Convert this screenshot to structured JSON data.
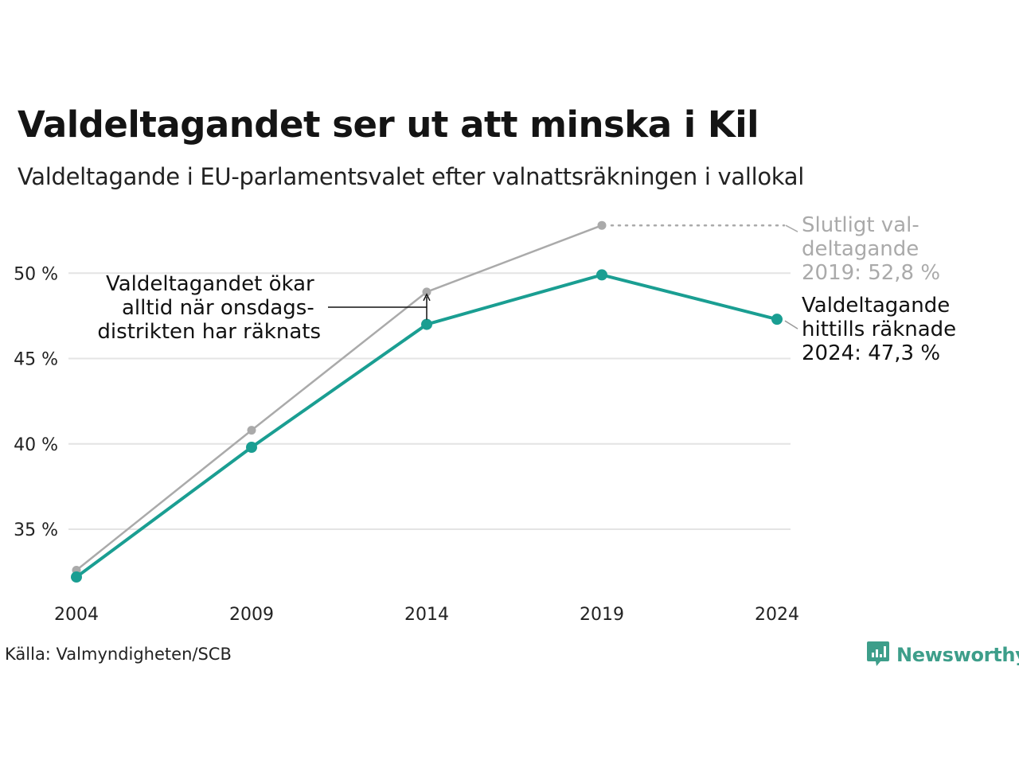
{
  "title": "Valdeltagandet ser ut att minska i Kil",
  "subtitle": "Valdeltagande i EU-parlamentsvalet efter valnattsräkningen i vallokal",
  "source": "Källa: Valmyndigheten/SCB",
  "brand": {
    "name": "Newsworthy",
    "icon": "newsworthy-logo-icon",
    "color": "#3d9e8a"
  },
  "colors": {
    "current": "#1a9e92",
    "final": "#aaaaaa",
    "grid": "#e4e4e4"
  },
  "chart_data": {
    "type": "line",
    "title": "Valdeltagandet ser ut att minska i Kil",
    "subtitle": "Valdeltagande i EU-parlamentsvalet efter valnattsräkningen i vallokal",
    "xlabel": "",
    "ylabel": "",
    "x": [
      "2004",
      "2009",
      "2014",
      "2019",
      "2024"
    ],
    "ylim": [
      30.5,
      54.5
    ],
    "yticks": [
      35,
      40,
      45,
      50
    ],
    "ytick_labels": [
      "35 %",
      "40 %",
      "45 %",
      "50 %"
    ],
    "grid": true,
    "series": [
      {
        "key": "final",
        "values": [
          32.6,
          40.8,
          48.9,
          52.8,
          null
        ]
      },
      {
        "key": "current",
        "values": [
          32.2,
          39.8,
          47.0,
          49.9,
          47.3
        ]
      }
    ],
    "annotations": {
      "final_label": [
        "Slutligt val-",
        "deltagande",
        "2019: 52,8 %"
      ],
      "current_label": [
        "Valdeltagande",
        "hittills räknade",
        "2024: 47,3 %"
      ],
      "note": [
        "Valdeltagandet ökar",
        "alltid när onsdags-",
        "distrikten har räknats"
      ]
    }
  }
}
